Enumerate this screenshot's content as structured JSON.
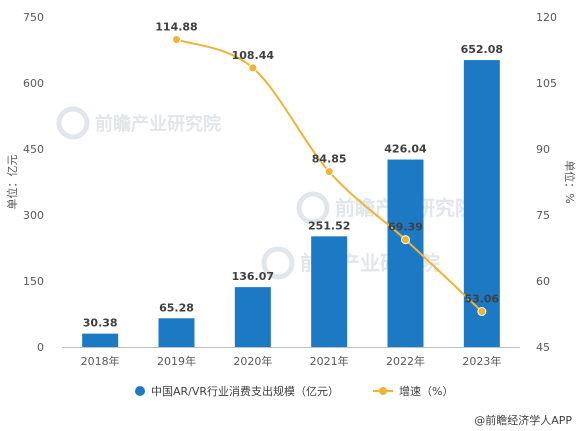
{
  "chart_data": {
    "type": "bar+line",
    "categories": [
      "2018年",
      "2019年",
      "2020年",
      "2021年",
      "2022年",
      "2023年"
    ],
    "series": [
      {
        "name": "中国AR/VR行业消费支出规模（亿元）",
        "type": "bar",
        "axis": "left",
        "color": "#1c7ac5",
        "values": [
          30.38,
          65.28,
          136.07,
          251.52,
          426.04,
          652.08
        ],
        "labels": [
          "30.38",
          "65.28",
          "136.07",
          "251.52",
          "426.04",
          "652.08"
        ]
      },
      {
        "name": "增速（%）",
        "type": "line",
        "axis": "right",
        "color": "#f0b333",
        "x": [
          "2019年",
          "2020年",
          "2021年",
          "2022年",
          "2023年"
        ],
        "values": [
          114.88,
          108.44,
          84.85,
          69.39,
          53.06
        ],
        "labels": [
          "114.88",
          "108.44",
          "84.85",
          "69.39",
          "53.06"
        ]
      }
    ],
    "y_left": {
      "label": "单位：亿元",
      "lim": [
        0,
        750
      ],
      "ticks": [
        "0",
        "150",
        "300",
        "450",
        "600",
        "750"
      ]
    },
    "y_right": {
      "label": "单位：%",
      "lim": [
        45,
        120
      ],
      "ticks": [
        "45",
        "60",
        "75",
        "90",
        "105",
        "120"
      ]
    },
    "grid": false,
    "legend_position": "bottom"
  },
  "watermark": "前瞻产业研究院",
  "source": "@前瞻经济学人APP"
}
